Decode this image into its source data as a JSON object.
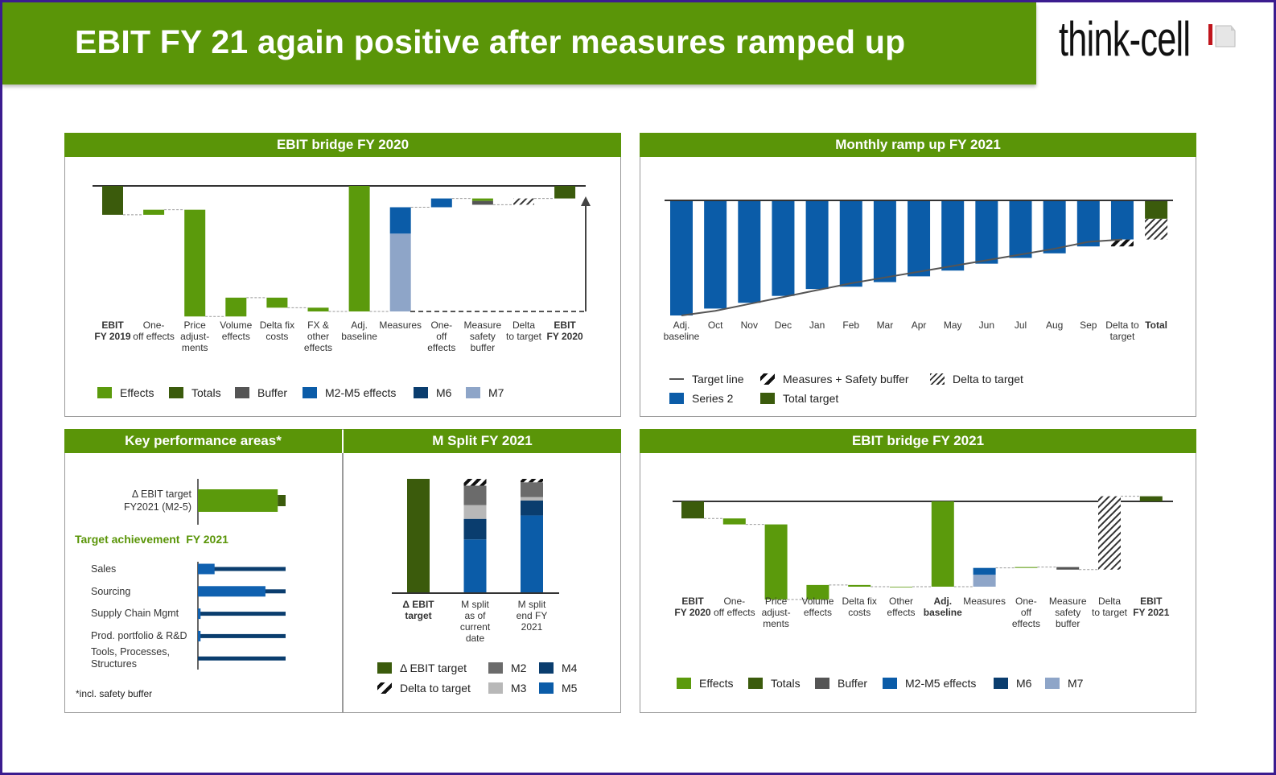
{
  "slide": {
    "title": "EBIT FY 21 again positive after measures ramped up",
    "logo_text": "think-cell"
  },
  "colors": {
    "brand_green": "#5a9508",
    "effects": "#5b9a0c",
    "totals": "#3b5b0c",
    "buffer": "#555555",
    "m2m5": "#0b5ca8",
    "m6": "#0a3d6e",
    "m7": "#8ea5c8",
    "m2": "#6b6b6b",
    "m3": "#b8b8b8",
    "m4": "#0a3d6e",
    "m5": "#0b5ca8",
    "series2": "#0b5ca8",
    "total_target": "#3b5b0c",
    "frame": "#3b1c8f"
  },
  "panels": {
    "ebit_bridge_2020": {
      "title": "EBIT bridge FY 2020"
    },
    "monthly_ramp": {
      "title": "Monthly ramp up FY 2021"
    },
    "key_performance": {
      "title": "Key performance areas*",
      "footnote": "*incl. safety buffer",
      "subheading": "Target achievement  FY 2021"
    },
    "m_split": {
      "title": "M Split FY 2021"
    },
    "ebit_bridge_2021": {
      "title": "EBIT bridge FY 2021"
    }
  },
  "chart_data": [
    {
      "id": "bridge2020",
      "type": "bar",
      "subtype": "waterfall",
      "title": "EBIT bridge FY 2020",
      "axis_labels_shown": false,
      "units": "relative (no axis values printed)",
      "steps": [
        {
          "label": "EBIT\nFY 2019",
          "bold": true,
          "total": true,
          "segments": [
            {
              "series": "totals",
              "value": -23
            }
          ]
        },
        {
          "label": "One-\noff effects",
          "segments": [
            {
              "series": "effects",
              "value": 4
            }
          ]
        },
        {
          "label": "Price\nadjust-\nments",
          "segments": [
            {
              "series": "effects",
              "value": -85
            }
          ]
        },
        {
          "label": "Volume\neffects",
          "segments": [
            {
              "series": "effects",
              "value": 15
            }
          ]
        },
        {
          "label": "Delta fix\ncosts",
          "segments": [
            {
              "series": "effects",
              "value": -8
            }
          ]
        },
        {
          "label": "FX &\nother\neffects",
          "segments": [
            {
              "series": "effects",
              "value": -3
            }
          ]
        },
        {
          "label": "Adj.\nbaseline",
          "total": true,
          "segments": [
            {
              "series": "effects",
              "value": -100
            }
          ]
        },
        {
          "label": "Measures",
          "segments": [
            {
              "series": "m7",
              "value": 62
            },
            {
              "series": "m2m5",
              "value": 21
            }
          ]
        },
        {
          "label": "One-\noff\neffects",
          "segments": [
            {
              "series": "m2m5",
              "value": 7
            }
          ]
        },
        {
          "label": "Measure\nsafety\nbuffer",
          "segments": [
            {
              "series": "effects",
              "value": -2
            },
            {
              "series": "buffer",
              "value": -3
            }
          ]
        },
        {
          "label": "Delta\nto target",
          "segments": [
            {
              "series": "delta",
              "value": 5
            }
          ]
        },
        {
          "label": "EBIT\nFY 2020",
          "bold": true,
          "total": true,
          "segments": [
            {
              "series": "totals",
              "value": -10
            }
          ]
        }
      ],
      "legend": [
        {
          "key": "effects",
          "label": "Effects"
        },
        {
          "key": "totals",
          "label": "Totals"
        },
        {
          "key": "buffer",
          "label": "Buffer"
        },
        {
          "key": "m2m5",
          "label": "M2-M5 effects"
        },
        {
          "key": "m6",
          "label": "M6"
        },
        {
          "key": "m7",
          "label": "M7"
        }
      ],
      "legend_position": "bottom"
    },
    {
      "id": "monthly",
      "type": "bar",
      "subtype": "stacked",
      "title": "Monthly ramp up FY 2021",
      "categories": [
        "Adj.\nbaseline",
        "Oct",
        "Nov",
        "Dec",
        "Jan",
        "Feb",
        "Mar",
        "Apr",
        "May",
        "Jun",
        "Jul",
        "Aug",
        "Sep",
        "Delta to\ntarget",
        "Total"
      ],
      "bold_categories": [
        "Total"
      ],
      "stacks": [
        [
          {
            "series": "series2",
            "value": -100
          }
        ],
        [
          {
            "series": "series2",
            "value": -94
          }
        ],
        [
          {
            "series": "series2",
            "value": -89
          }
        ],
        [
          {
            "series": "series2",
            "value": -83
          }
        ],
        [
          {
            "series": "series2",
            "value": -77
          }
        ],
        [
          {
            "series": "series2",
            "value": -75
          }
        ],
        [
          {
            "series": "series2",
            "value": -71
          }
        ],
        [
          {
            "series": "series2",
            "value": -66
          }
        ],
        [
          {
            "series": "series2",
            "value": -61
          }
        ],
        [
          {
            "series": "series2",
            "value": -55
          }
        ],
        [
          {
            "series": "series2",
            "value": -50
          }
        ],
        [
          {
            "series": "series2",
            "value": -46
          }
        ],
        [
          {
            "series": "series2",
            "value": -40
          }
        ],
        [
          {
            "series": "series2",
            "value": -34
          },
          {
            "series": "measures_safety",
            "value": -6
          }
        ],
        [
          {
            "series": "total_target",
            "value": -16
          },
          {
            "series": "delta",
            "value": -18
          }
        ]
      ],
      "target_line": [
        -100,
        -96,
        -90,
        -84,
        -78,
        -72,
        -67,
        -62,
        -57,
        -52,
        -47,
        -42,
        -36,
        -34
      ],
      "legend": [
        {
          "key": "target_line",
          "label": "Target line"
        },
        {
          "key": "measures_safety",
          "label": "Measures + Safety buffer"
        },
        {
          "key": "delta",
          "label": "Delta to target"
        },
        {
          "key": "series2",
          "label": "Series 2"
        },
        {
          "key": "total_target",
          "label": "Total target"
        }
      ],
      "legend_position": "bottom"
    },
    {
      "id": "kpa",
      "type": "bar",
      "subtype": "horizontal",
      "title": "Key performance areas*",
      "ebit_target": {
        "label": "Δ EBIT target\nFY2021 (M2-5)",
        "target_share": 0.91,
        "buffer_share": 0.09
      },
      "categories": [
        "Sales",
        "Sourcing",
        "Supply Chain Mgmt",
        "Prod. portfolio & R&D",
        "Tools, Processes,\nStructures"
      ],
      "achievement": [
        0.19,
        0.77,
        0.03,
        0.03,
        0.0
      ]
    },
    {
      "id": "msplit",
      "type": "bar",
      "subtype": "stacked",
      "title": "M Split FY 2021",
      "categories": [
        "Δ EBIT\ntarget",
        "M split\nas of\ncurrent\ndate",
        "M split\nend FY\n2021"
      ],
      "bold_categories": [
        "Δ EBIT\ntarget"
      ],
      "stacks": [
        [
          {
            "series": "ebit_target",
            "value": 100
          }
        ],
        [
          {
            "series": "m5",
            "value": 47
          },
          {
            "series": "m4",
            "value": 18
          },
          {
            "series": "m3",
            "value": 12
          },
          {
            "series": "m2",
            "value": 17
          },
          {
            "series": "delta_thick",
            "value": 6
          }
        ],
        [
          {
            "series": "m5",
            "value": 68
          },
          {
            "series": "m4",
            "value": 13
          },
          {
            "series": "m3",
            "value": 3
          },
          {
            "series": "m2",
            "value": 13
          },
          {
            "series": "delta_thick",
            "value": 3
          }
        ]
      ],
      "legend": [
        {
          "key": "ebit_target",
          "label": "Δ EBIT target"
        },
        {
          "key": "m2",
          "label": "M2"
        },
        {
          "key": "m4",
          "label": "M4"
        },
        {
          "key": "delta_thick",
          "label": "Delta to target"
        },
        {
          "key": "m3",
          "label": "M3"
        },
        {
          "key": "m5",
          "label": "M5"
        }
      ],
      "legend_position": "bottom"
    },
    {
      "id": "bridge2021",
      "type": "bar",
      "subtype": "waterfall",
      "title": "EBIT bridge FY 2021",
      "steps": [
        {
          "label": "EBIT\nFY 2020",
          "bold": true,
          "total": true,
          "segments": [
            {
              "series": "totals",
              "value": -20
            }
          ]
        },
        {
          "label": "One-\noff effects",
          "segments": [
            {
              "series": "effects",
              "value": -7
            }
          ]
        },
        {
          "label": "Price\nadjust-\nments",
          "segments": [
            {
              "series": "effects",
              "value": -88
            }
          ]
        },
        {
          "label": "Volume\neffects",
          "segments": [
            {
              "series": "effects",
              "value": 17
            }
          ]
        },
        {
          "label": "Delta fix\ncosts",
          "segments": [
            {
              "series": "effects",
              "value": -2
            }
          ]
        },
        {
          "label": "Other\neffects",
          "segments": [
            {
              "series": "effects",
              "value": 0
            }
          ]
        },
        {
          "label": "Adj.\nbaseline",
          "bold": true,
          "total": true,
          "segments": [
            {
              "series": "effects",
              "value": -100
            }
          ]
        },
        {
          "label": "Measures",
          "segments": [
            {
              "series": "m7",
              "value": 14
            },
            {
              "series": "m2m5",
              "value": 8
            }
          ]
        },
        {
          "label": "One-\noff\neffects",
          "segments": [
            {
              "series": "effects",
              "value": 1
            }
          ]
        },
        {
          "label": "Measure\nsafety\nbuffer",
          "segments": [
            {
              "series": "buffer",
              "value": -3
            }
          ]
        },
        {
          "label": "Delta\nto target",
          "segments": [
            {
              "series": "delta",
              "value": 86
            }
          ]
        },
        {
          "label": "EBIT\nFY 2021",
          "bold": true,
          "total": true,
          "segments": [
            {
              "series": "totals",
              "value": 6
            }
          ]
        }
      ],
      "legend": [
        {
          "key": "effects",
          "label": "Effects"
        },
        {
          "key": "totals",
          "label": "Totals"
        },
        {
          "key": "buffer",
          "label": "Buffer"
        },
        {
          "key": "m2m5",
          "label": "M2-M5 effects"
        },
        {
          "key": "m6",
          "label": "M6"
        },
        {
          "key": "m7",
          "label": "M7"
        }
      ],
      "legend_position": "bottom"
    }
  ]
}
